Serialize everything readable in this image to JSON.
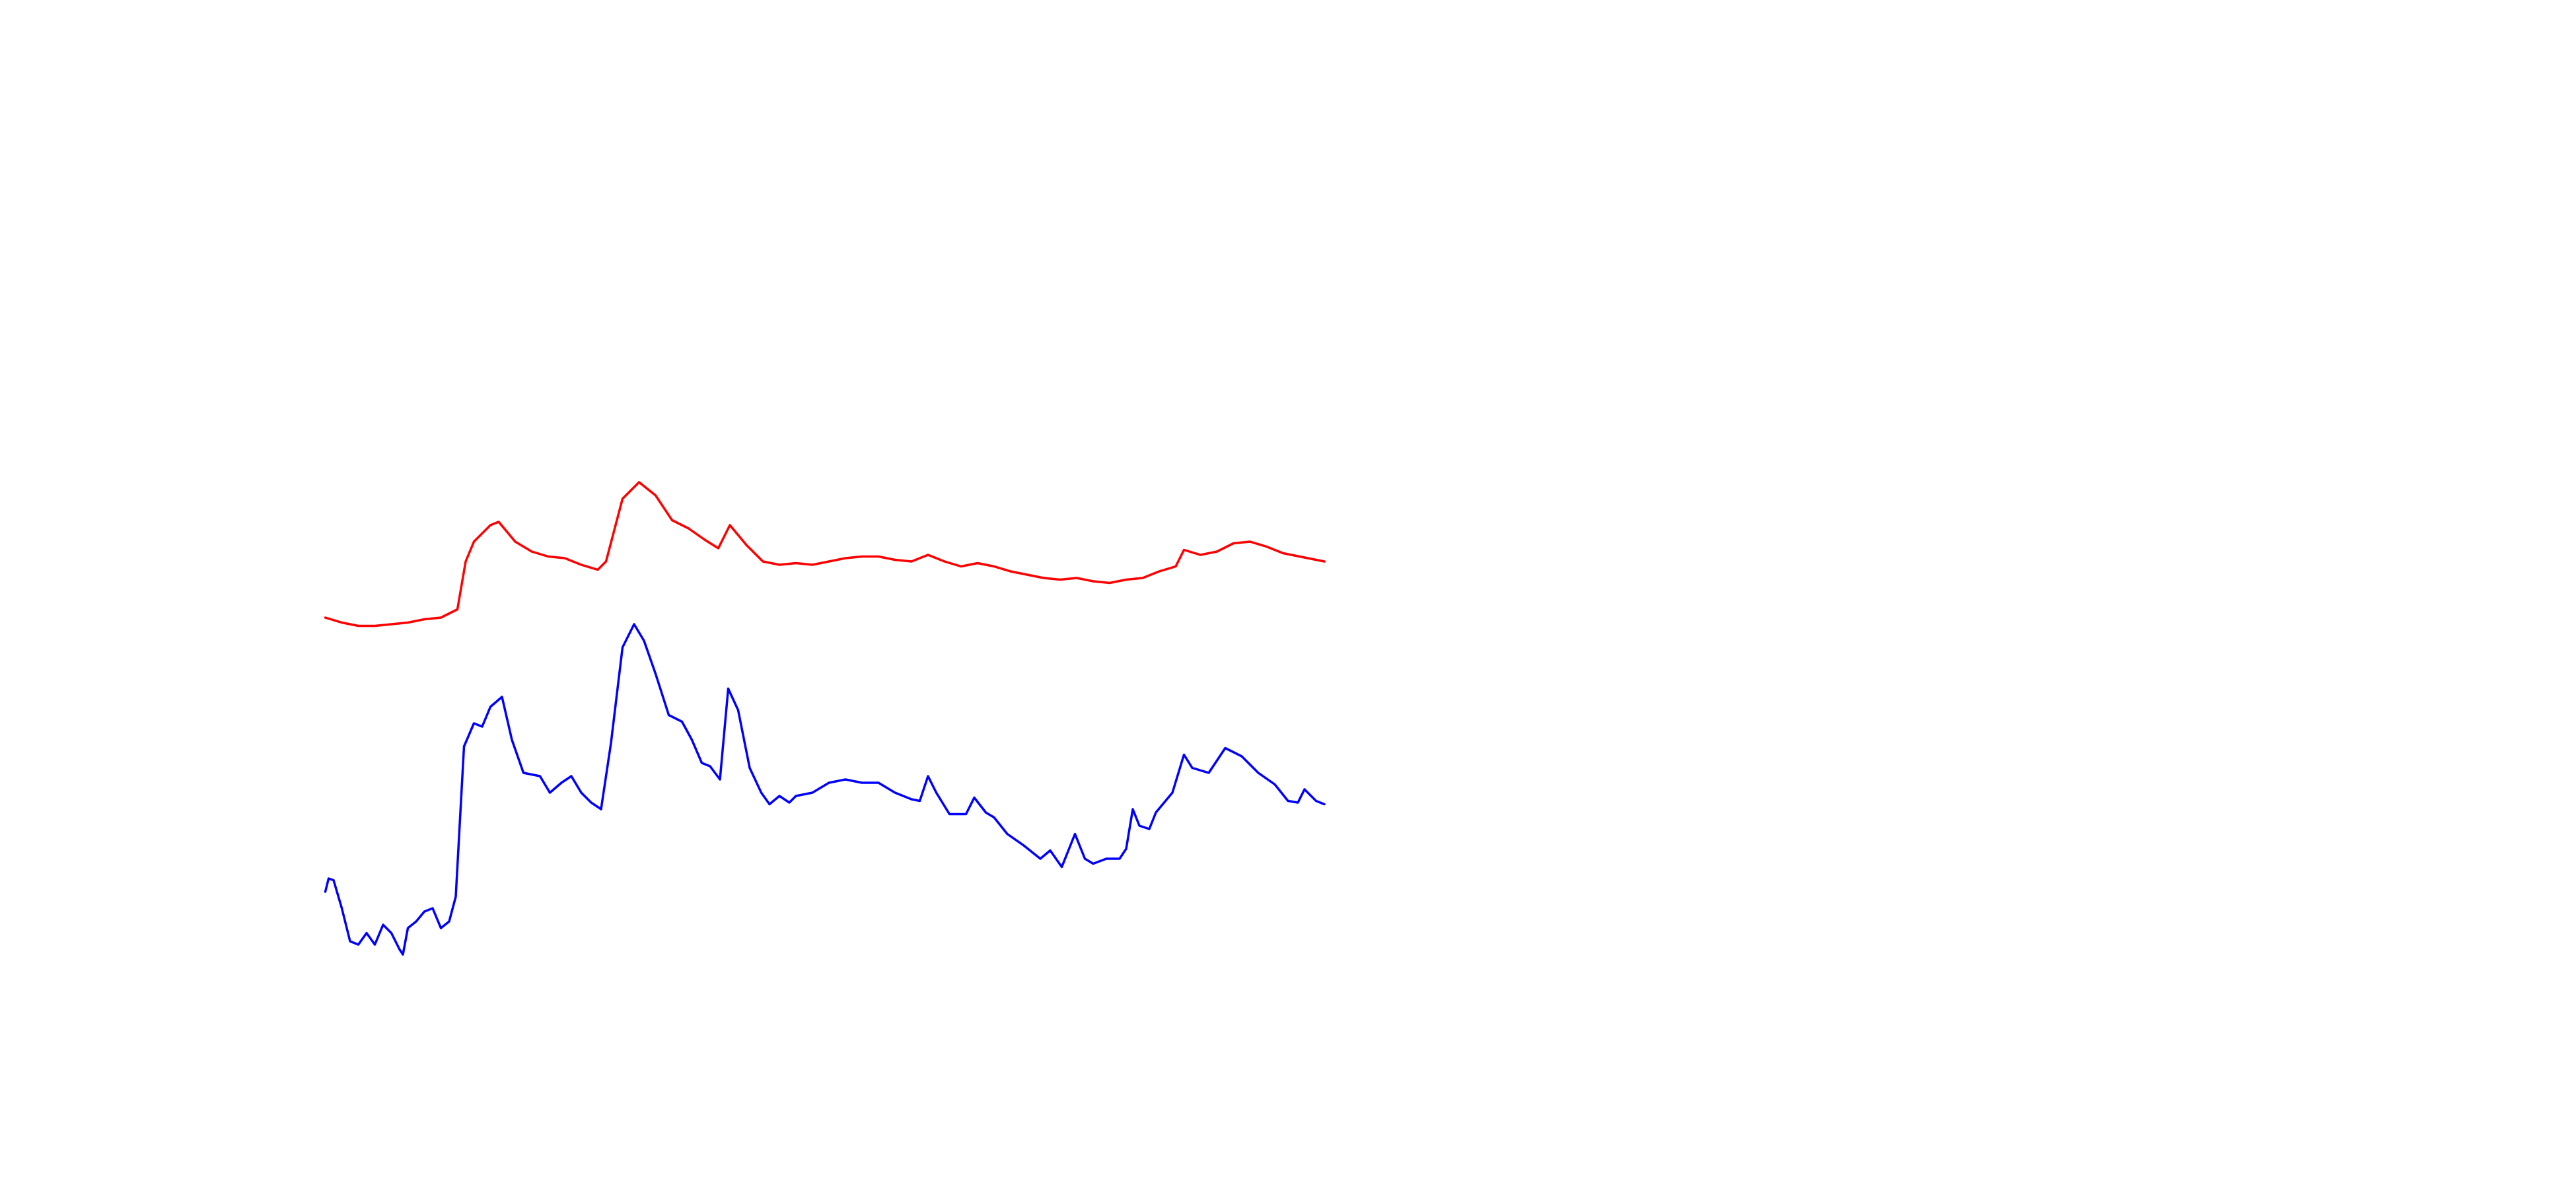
{
  "chart_data": {
    "type": "line",
    "xlim": [
      -197,
      1363
    ],
    "ylim": [
      0,
      720
    ],
    "series": [
      {
        "color": "#ff0000",
        "x": [
          0,
          10,
          20,
          30,
          40,
          50,
          60,
          70,
          80,
          85,
          90,
          100,
          105,
          115,
          125,
          135,
          145,
          155,
          165,
          170,
          180,
          190,
          200,
          210,
          220,
          230,
          238,
          245,
          255,
          265,
          275,
          285,
          295,
          305,
          315,
          325,
          335,
          345,
          355,
          365,
          375,
          385,
          395,
          405,
          415,
          425,
          435,
          445,
          455,
          465,
          475,
          485,
          495,
          505,
          515,
          520,
          530,
          540,
          550,
          560,
          570,
          580,
          590,
          600,
          605
        ],
        "values": [
          346,
          343,
          341,
          341,
          342,
          343,
          345,
          346,
          351,
          380,
          392,
          402,
          404,
          392,
          386,
          383,
          382,
          378,
          375,
          380,
          418,
          428,
          420,
          405,
          400,
          393,
          388,
          402,
          390,
          380,
          378,
          379,
          378,
          380,
          382,
          383,
          383,
          381,
          380,
          384,
          380,
          377,
          379,
          377,
          374,
          372,
          370,
          369,
          370,
          368,
          367,
          369,
          370,
          374,
          377,
          387,
          384,
          386,
          391,
          392,
          389,
          385,
          383,
          381,
          380
        ]
      },
      {
        "color": "#0000ff",
        "x": [
          0,
          2,
          5,
          10,
          15,
          20,
          25,
          30,
          35,
          40,
          45,
          47,
          50,
          55,
          60,
          65,
          70,
          75,
          79,
          84,
          90,
          95,
          100,
          107,
          113,
          120,
          130,
          136,
          143,
          149,
          155,
          161,
          167,
          173,
          180,
          187,
          193,
          200,
          208,
          216,
          222,
          228,
          233,
          239,
          244,
          250,
          257,
          264,
          269,
          275,
          281,
          285,
          295,
          305,
          315,
          325,
          335,
          345,
          355,
          360,
          365,
          370,
          378,
          388,
          393,
          400,
          405,
          413,
          423,
          433,
          439,
          446,
          454,
          460,
          465,
          473,
          481,
          485,
          489,
          493,
          499,
          503,
          513,
          520,
          525,
          535,
          545,
          555,
          565,
          575,
          583,
          589,
          593,
          600,
          605
        ],
        "values": [
          180,
          188,
          187,
          170,
          150,
          148,
          155,
          148,
          160,
          155,
          145,
          142,
          158,
          162,
          168,
          170,
          158,
          162,
          177,
          268,
          282,
          280,
          292,
          298,
          272,
          252,
          250,
          240,
          246,
          250,
          240,
          234,
          230,
          270,
          328,
          342,
          332,
          312,
          287,
          283,
          272,
          258,
          256,
          248,
          303,
          290,
          255,
          240,
          233,
          238,
          234,
          238,
          240,
          246,
          248,
          246,
          246,
          240,
          236,
          235,
          250,
          240,
          227,
          227,
          237,
          228,
          225,
          215,
          208,
          200,
          205,
          195,
          215,
          200,
          197,
          200,
          200,
          206,
          230,
          220,
          218,
          228,
          240,
          263,
          255,
          252,
          267,
          262,
          252,
          245,
          235,
          234,
          242,
          235,
          233
        ]
      }
    ]
  }
}
